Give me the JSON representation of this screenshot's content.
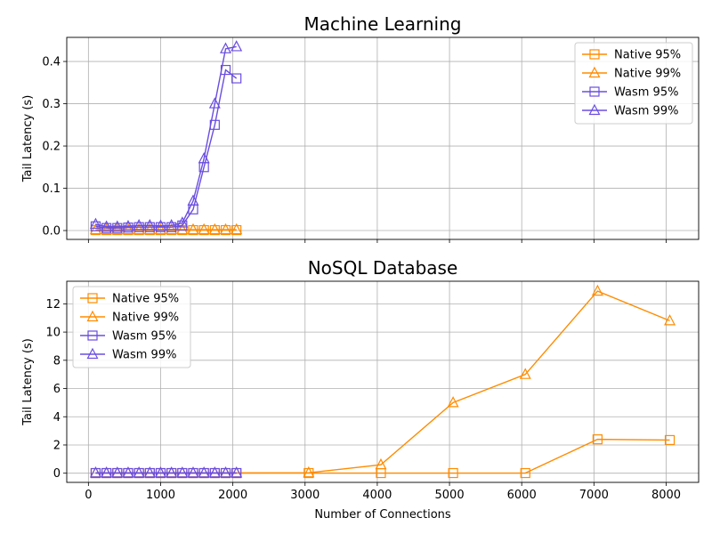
{
  "chart_data": [
    {
      "type": "line",
      "title": "Machine Learning",
      "xlabel": "",
      "ylabel": "Tail Latency (s)",
      "xlim": [
        -300,
        8450
      ],
      "ylim": [
        -0.021,
        0.457
      ],
      "xticks": [
        0,
        1000,
        2000,
        3000,
        4000,
        5000,
        6000,
        7000,
        8000
      ],
      "show_xtick_labels": false,
      "yticks": [
        0.0,
        0.1,
        0.2,
        0.3,
        0.4
      ],
      "ytick_labels": [
        "0.0",
        "0.1",
        "0.2",
        "0.3",
        "0.4"
      ],
      "grid": true,
      "legend_position": "upper-right",
      "series": [
        {
          "name": "Native 95%",
          "color": "#ff8c00",
          "marker": "square",
          "x": [
            100,
            250,
            400,
            550,
            700,
            850,
            1000,
            1150,
            1300,
            1450,
            1600,
            1750,
            1900,
            2050
          ],
          "y": [
            0.001,
            0.001,
            0.001,
            0.001,
            0.001,
            0.001,
            0.001,
            0.001,
            0.001,
            0.001,
            0.001,
            0.001,
            0.001,
            0.001
          ]
        },
        {
          "name": "Native 99%",
          "color": "#ff8c00",
          "marker": "triangle",
          "x": [
            100,
            250,
            400,
            550,
            700,
            850,
            1000,
            1150,
            1300,
            1450,
            1600,
            1750,
            1900,
            2050
          ],
          "y": [
            0.002,
            0.002,
            0.002,
            0.002,
            0.002,
            0.002,
            0.002,
            0.002,
            0.002,
            0.002,
            0.002,
            0.002,
            0.002,
            0.002
          ]
        },
        {
          "name": "Wasm 95%",
          "color": "#6a4ee0",
          "marker": "square",
          "x": [
            100,
            250,
            400,
            550,
            700,
            850,
            1000,
            1150,
            1300,
            1450,
            1600,
            1750,
            1900,
            2050
          ],
          "y": [
            0.01,
            0.006,
            0.006,
            0.007,
            0.008,
            0.008,
            0.008,
            0.008,
            0.012,
            0.05,
            0.15,
            0.25,
            0.38,
            0.36
          ]
        },
        {
          "name": "Wasm 99%",
          "color": "#6a4ee0",
          "marker": "triangle",
          "x": [
            100,
            250,
            400,
            550,
            700,
            850,
            1000,
            1150,
            1300,
            1450,
            1600,
            1750,
            1900,
            2050
          ],
          "y": [
            0.015,
            0.009,
            0.009,
            0.01,
            0.012,
            0.012,
            0.011,
            0.012,
            0.018,
            0.07,
            0.17,
            0.3,
            0.43,
            0.435
          ]
        }
      ]
    },
    {
      "type": "line",
      "title": "NoSQL Database",
      "xlabel": "Number of Connections",
      "ylabel": "Tail Latency (s)",
      "xlim": [
        -300,
        8450
      ],
      "ylim": [
        -0.65,
        13.6
      ],
      "xticks": [
        0,
        1000,
        2000,
        3000,
        4000,
        5000,
        6000,
        7000,
        8000
      ],
      "xtick_labels": [
        "0",
        "1000",
        "2000",
        "3000",
        "4000",
        "5000",
        "6000",
        "7000",
        "8000"
      ],
      "show_xtick_labels": true,
      "yticks": [
        0,
        2,
        4,
        6,
        8,
        10,
        12
      ],
      "ytick_labels": [
        "0",
        "2",
        "4",
        "6",
        "8",
        "10",
        "12"
      ],
      "grid": true,
      "legend_position": "upper-left",
      "series": [
        {
          "name": "Native 95%",
          "color": "#ff8c00",
          "marker": "square",
          "x": [
            100,
            250,
            400,
            550,
            700,
            850,
            1000,
            1150,
            1300,
            1450,
            1600,
            1750,
            1900,
            2050,
            3050,
            4050,
            5050,
            6050,
            7050,
            8050
          ],
          "y": [
            0.01,
            0.01,
            0.01,
            0.01,
            0.01,
            0.01,
            0.01,
            0.01,
            0.01,
            0.01,
            0.01,
            0.01,
            0.01,
            0.01,
            0.01,
            0.01,
            0.01,
            0.01,
            2.4,
            2.35
          ]
        },
        {
          "name": "Native 99%",
          "color": "#ff8c00",
          "marker": "triangle",
          "x": [
            100,
            250,
            400,
            550,
            700,
            850,
            1000,
            1150,
            1300,
            1450,
            1600,
            1750,
            1900,
            2050,
            3050,
            4050,
            5050,
            6050,
            7050,
            8050
          ],
          "y": [
            0.02,
            0.02,
            0.02,
            0.02,
            0.02,
            0.02,
            0.02,
            0.02,
            0.02,
            0.02,
            0.02,
            0.02,
            0.02,
            0.02,
            0.03,
            0.6,
            5.0,
            7.0,
            12.9,
            10.8
          ]
        },
        {
          "name": "Wasm 95%",
          "color": "#6a4ee0",
          "marker": "square",
          "x": [
            100,
            250,
            400,
            550,
            700,
            850,
            1000,
            1150,
            1300,
            1450,
            1600,
            1750,
            1900,
            2050
          ],
          "y": [
            0.01,
            0.01,
            0.01,
            0.01,
            0.01,
            0.01,
            0.01,
            0.01,
            0.01,
            0.01,
            0.01,
            0.01,
            0.01,
            0.01
          ]
        },
        {
          "name": "Wasm 99%",
          "color": "#6a4ee0",
          "marker": "triangle",
          "x": [
            100,
            250,
            400,
            550,
            700,
            850,
            1000,
            1150,
            1300,
            1450,
            1600,
            1750,
            1900,
            2050
          ],
          "y": [
            0.02,
            0.02,
            0.02,
            0.02,
            0.02,
            0.02,
            0.02,
            0.02,
            0.02,
            0.02,
            0.02,
            0.02,
            0.02,
            0.02
          ]
        }
      ]
    }
  ]
}
